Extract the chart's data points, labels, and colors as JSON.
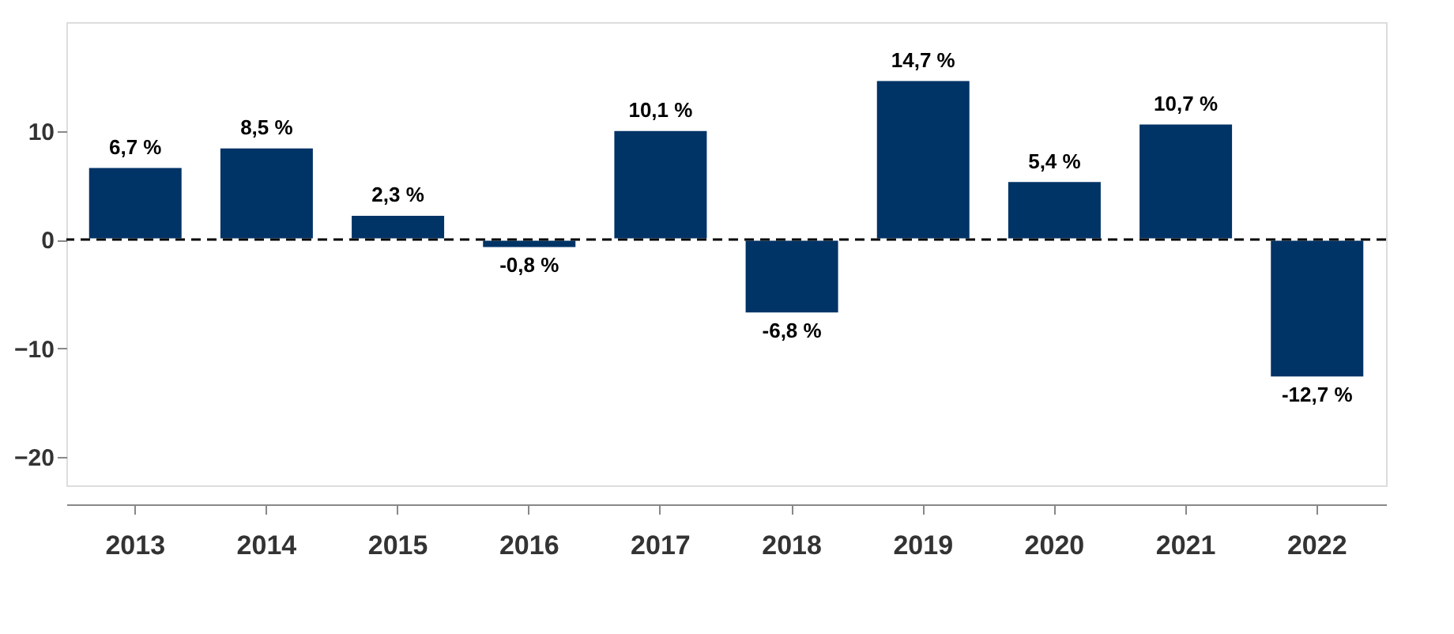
{
  "chart_data": {
    "type": "bar",
    "categories": [
      "2013",
      "2014",
      "2015",
      "2016",
      "2017",
      "2018",
      "2019",
      "2020",
      "2021",
      "2022"
    ],
    "series": [
      {
        "color": "#003366",
        "values": [
          6.7,
          8.5,
          2.3,
          -0.8,
          10.1,
          -6.8,
          14.7,
          5.4,
          10.7,
          -12.7
        ],
        "value_labels": [
          "6,7 %",
          "8,5 %",
          "2,3 %",
          "-0,8 %",
          "10,1 %",
          "-6,8 %",
          "14,7 %",
          "5,4 %",
          "10,7 %",
          "-12,7 %"
        ]
      }
    ],
    "ylim": [
      -22.6,
      20
    ],
    "yticks": [
      -20,
      -10,
      0,
      10
    ],
    "ref_lines": [
      {
        "axis": "y",
        "value": 0,
        "line_style": "dashed",
        "color": "#000000"
      }
    ],
    "grid": false
  }
}
